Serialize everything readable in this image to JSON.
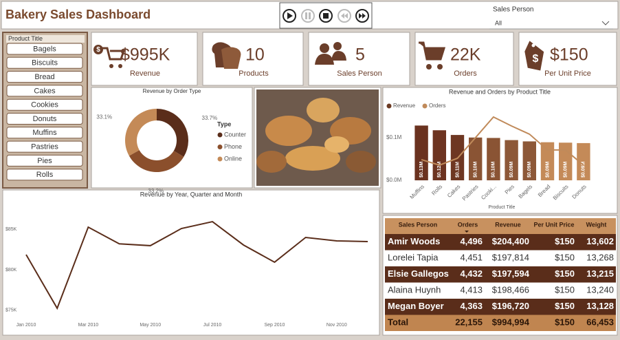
{
  "header": {
    "title": "Bakery Sales Dashboard"
  },
  "sales_person_slicer": {
    "label": "Sales Person",
    "value": "All"
  },
  "product_slicer": {
    "label": "Product Title",
    "items": [
      "Bagels",
      "Biscuits",
      "Bread",
      "Cakes",
      "Cookies",
      "Donuts",
      "Muffins",
      "Pastries",
      "Pies",
      "Rolls"
    ]
  },
  "kpis": [
    {
      "value": "$995K",
      "label": "Revenue"
    },
    {
      "value": "10",
      "label": "Products"
    },
    {
      "value": "5",
      "label": "Sales Person"
    },
    {
      "value": "22K",
      "label": "Orders"
    },
    {
      "value": "$150",
      "label": "Per Unit Price"
    }
  ],
  "chart_data": [
    {
      "type": "pie",
      "donut": true,
      "title": "Revenue by Order Type",
      "legend_title": "Type",
      "legend": "right",
      "categories": [
        "Counter",
        "Phone",
        "Online"
      ],
      "values": [
        33.7,
        33.2,
        33.1
      ],
      "value_labels": [
        "33.7%",
        "33.2%",
        "33.1%"
      ],
      "colors": [
        "#5a2d1a",
        "#8b4f2c",
        "#c48a57"
      ]
    },
    {
      "type": "combo",
      "title": "Revenue and Orders by Product Title",
      "x_label": "Product Title",
      "legend": "top-left",
      "categories": [
        "Muffins",
        "Rolls",
        "Cakes",
        "Pastries",
        "Cooki...",
        "Pies",
        "Bagels",
        "Bread",
        "Biscuits",
        "Donuts"
      ],
      "series": [
        {
          "name": "Revenue",
          "type": "bar",
          "color": "#6b3a22",
          "colors": [
            "#6a321f",
            "#6d3421",
            "#6e3722",
            "#8a5434",
            "#8a5434",
            "#8d5838",
            "#8d5838",
            "#c48a58",
            "#c48a58",
            "#c48a58"
          ],
          "values": [
            128000,
            117000,
            106000,
            100000,
            99000,
            94000,
            91000,
            89000,
            88000,
            87000
          ],
          "value_labels": [
            "$0.13M",
            "$0.12M",
            "$0.11M",
            "$0.10M",
            "$0.10M",
            "$0.09M",
            "$0.09M",
            "$0.09M",
            "$0.09M",
            "$0.09M"
          ]
        },
        {
          "name": "Orders",
          "type": "line",
          "axis": "y2",
          "color": "#c08a5a",
          "values": [
            2117,
            2059,
            2131,
            2347,
            2564,
            2470,
            2384,
            2218,
            2218,
            2059
          ]
        }
      ],
      "ylim": [
        0,
        156000
      ],
      "yticks": [
        {
          "value": 0,
          "label": "$0.0M"
        },
        {
          "value": 100000,
          "label": "$0.1M"
        }
      ],
      "y2lim": [
        1900,
        2600
      ],
      "grid": false
    },
    {
      "type": "line",
      "title": "Revenue by Year, Quarter and Month",
      "categories": [
        "Jan 2010",
        null,
        "Mar 2010",
        null,
        "May 2010",
        null,
        "Jul 2010",
        null,
        "Sep 2010",
        null,
        "Nov 2010",
        null
      ],
      "values": [
        81860,
        75250,
        85250,
        83200,
        82970,
        85080,
        85930,
        83050,
        80930,
        83980,
        83560,
        83470
      ],
      "color": "#5a2d1a",
      "ylim": [
        73800,
        87800
      ],
      "yticks": [
        {
          "value": 75000,
          "label": "$75K"
        },
        {
          "value": 80000,
          "label": "$80K"
        },
        {
          "value": 85000,
          "label": "$85K"
        }
      ],
      "grid": false
    }
  ],
  "table": {
    "columns": [
      "Sales Person",
      "Orders",
      "Revenue",
      "Per Unit Price",
      "Weight"
    ],
    "rows": [
      [
        "Amir Woods",
        "4,496",
        "$204,400",
        "$150",
        "13,602"
      ],
      [
        "Lorelei Tapia",
        "4,451",
        "$197,814",
        "$150",
        "13,268"
      ],
      [
        "Elsie Gallegos",
        "4,432",
        "$197,594",
        "$150",
        "13,215"
      ],
      [
        "Alaina Huynh",
        "4,413",
        "$198,466",
        "$150",
        "13,240"
      ],
      [
        "Megan Boyer",
        "4,363",
        "$196,720",
        "$150",
        "13,128"
      ]
    ],
    "total": [
      "Total",
      "22,155",
      "$994,994",
      "$150",
      "66,453"
    ]
  }
}
